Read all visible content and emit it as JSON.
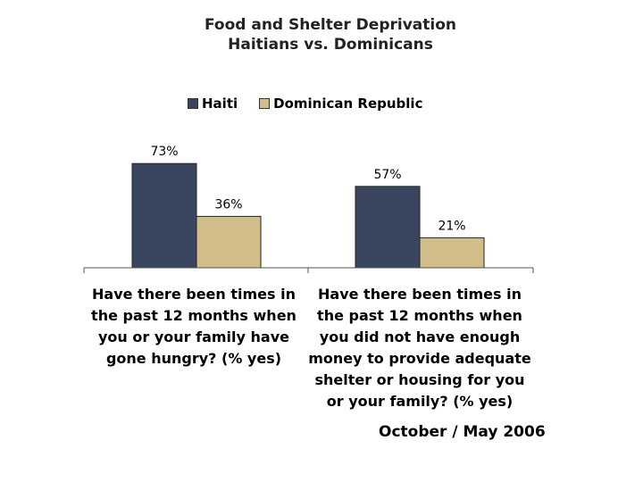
{
  "chart_data": {
    "type": "bar",
    "title": [
      "Food and Shelter Deprivation",
      "Haitians vs. Dominicans"
    ],
    "categories": [
      "Have there been times in the past 12 months when you or your family have gone hungry? (% yes)",
      "Have there been times in the past 12 months when you did not have enough money to provide adequate shelter or housing for you or your family? (% yes)"
    ],
    "series": [
      {
        "name": "Haiti",
        "values": [
          73,
          57
        ],
        "labels": [
          "73%",
          "57%"
        ],
        "color": "#3a4660"
      },
      {
        "name": "Dominican Republic",
        "values": [
          36,
          21
        ],
        "labels": [
          "36%",
          "21%"
        ],
        "color": "#d1bd8a"
      }
    ],
    "ylim": [
      0,
      100
    ],
    "grid": false,
    "legend_position": "top"
  },
  "footnote": "October / May 2006"
}
